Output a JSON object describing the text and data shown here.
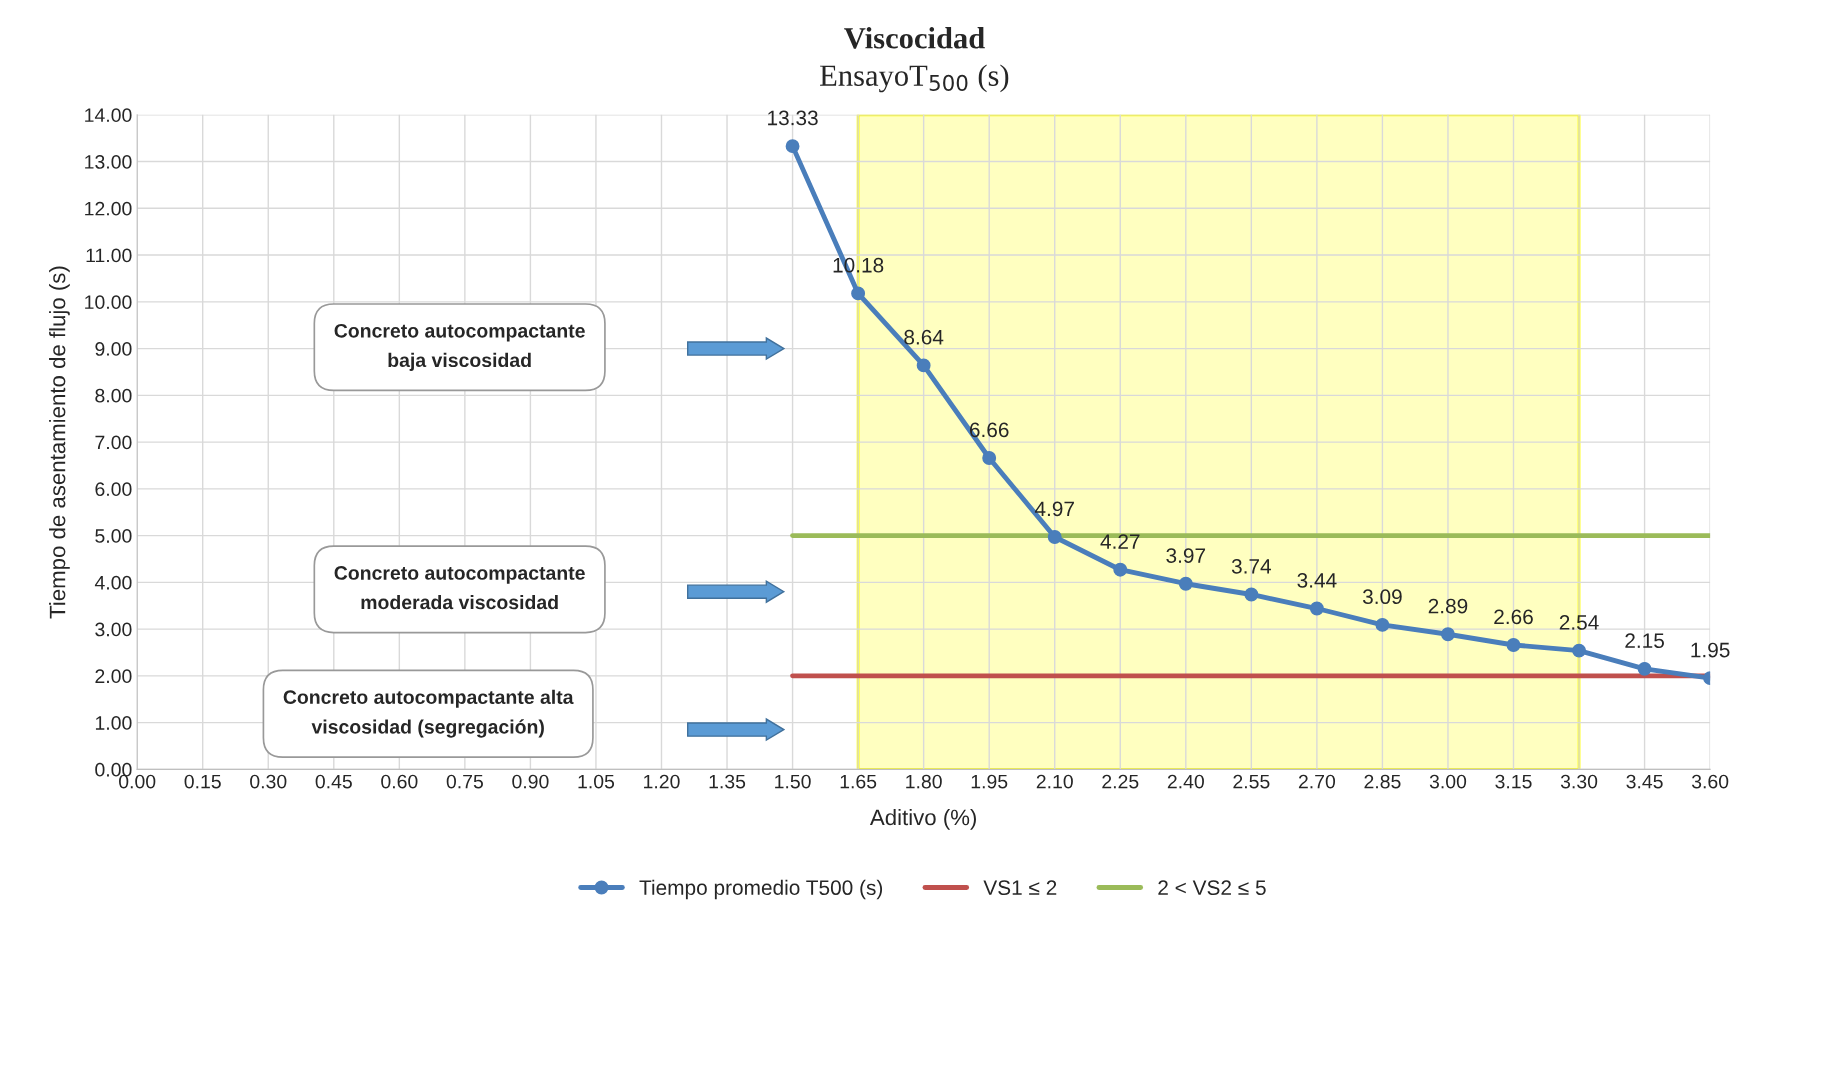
{
  "chart_data": {
    "type": "line",
    "title": "Viscocidad",
    "subtitle": "EnsayoT$_{500}$ (s)",
    "xlabel": "Aditivo (%)",
    "ylabel": "Tiempo de asentamiento de flujo (s)",
    "series": [
      {
        "name": "Tiempo promedio T500 (s)",
        "color": "#4a7ebb",
        "marker": "circle",
        "x": [
          1.5,
          1.65,
          1.8,
          1.95,
          2.1,
          2.25,
          2.4,
          2.55,
          2.7,
          2.85,
          3.0,
          3.15,
          3.3,
          3.45,
          3.6
        ],
        "values": [
          13.33,
          10.18,
          8.64,
          6.66,
          4.97,
          4.27,
          3.97,
          3.74,
          3.44,
          3.09,
          2.89,
          2.66,
          2.54,
          2.15,
          1.95
        ],
        "value_labels": [
          "13.33",
          "10.18",
          "8.64",
          "6.66",
          "4.97",
          "4.27",
          "3.97",
          "3.74",
          "3.44",
          "3.09",
          "2.89",
          "2.66",
          "2.54",
          "2.15",
          "1.95"
        ]
      },
      {
        "name": "VS1 ≤ 2",
        "color": "#c0504d",
        "marker": "none",
        "x": [
          1.5,
          3.6
        ],
        "values": [
          2,
          2
        ]
      },
      {
        "name": "2 < VS2 ≤ 5",
        "color": "#9bbb59",
        "marker": "none",
        "x": [
          1.5,
          3.6
        ],
        "values": [
          5,
          5
        ]
      }
    ],
    "bands": [
      {
        "axis": "x",
        "from": 1.65,
        "to": 3.3,
        "color": "#ffffc0"
      }
    ],
    "annotations": [
      "Concreto autocompactante\nbaja viscosidad",
      "Concreto autocompactante\nmoderada viscosidad",
      "Concreto autocompactante alta\nviscosidad (segregación)"
    ],
    "xlim": [
      0,
      3.6
    ],
    "xticks": [
      {
        "value": 0,
        "label": "0.00"
      },
      {
        "value": 0.15,
        "label": "0.15"
      },
      {
        "value": 0.3,
        "label": "0.30"
      },
      {
        "value": 0.45,
        "label": "0.45"
      },
      {
        "value": 0.6,
        "label": "0.60"
      },
      {
        "value": 0.75,
        "label": "0.75"
      },
      {
        "value": 0.9,
        "label": "0.90"
      },
      {
        "value": 1.05,
        "label": "1.05"
      },
      {
        "value": 1.2,
        "label": "1.20"
      },
      {
        "value": 1.35,
        "label": "1.35"
      },
      {
        "value": 1.5,
        "label": "1.50"
      },
      {
        "value": 1.65,
        "label": "1.65"
      },
      {
        "value": 1.8,
        "label": "1.80"
      },
      {
        "value": 1.95,
        "label": "1.95"
      },
      {
        "value": 2.1,
        "label": "2.10"
      },
      {
        "value": 2.25,
        "label": "2.25"
      },
      {
        "value": 2.4,
        "label": "2.40"
      },
      {
        "value": 2.55,
        "label": "2.55"
      },
      {
        "value": 2.7,
        "label": "2.70"
      },
      {
        "value": 2.85,
        "label": "2.85"
      },
      {
        "value": 3.0,
        "label": "3.00"
      },
      {
        "value": 3.15,
        "label": "3.15"
      },
      {
        "value": 3.3,
        "label": "3.30"
      },
      {
        "value": 3.45,
        "label": "3.45"
      },
      {
        "value": 3.6,
        "label": "3.60"
      }
    ],
    "ylim": [
      0,
      14
    ],
    "yticks": [
      {
        "value": 0,
        "label": "0.00"
      },
      {
        "value": 1,
        "label": "1.00"
      },
      {
        "value": 2,
        "label": "2.00"
      },
      {
        "value": 3,
        "label": "3.00"
      },
      {
        "value": 4,
        "label": "4.00"
      },
      {
        "value": 5,
        "label": "5.00"
      },
      {
        "value": 6,
        "label": "6.00"
      },
      {
        "value": 7,
        "label": "7.00"
      },
      {
        "value": 8,
        "label": "8.00"
      },
      {
        "value": 9,
        "label": "9.00"
      },
      {
        "value": 10,
        "label": "10.00"
      },
      {
        "value": 11,
        "label": "11.00"
      },
      {
        "value": 12,
        "label": "12.00"
      },
      {
        "value": 13,
        "label": "13.00"
      },
      {
        "value": 14,
        "label": "14.00"
      }
    ],
    "grid": true,
    "legend": "bottom"
  }
}
